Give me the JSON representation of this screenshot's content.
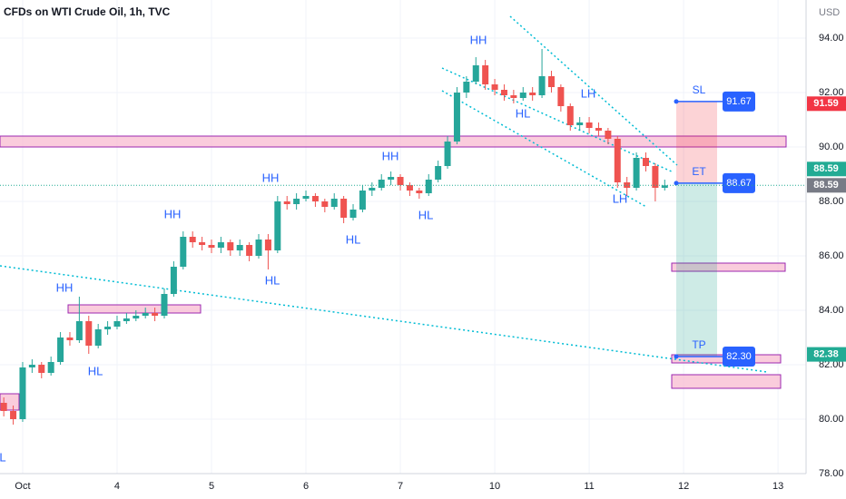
{
  "header": {
    "title": "CFDs on WTI Crude Oil, 1h, TVC"
  },
  "chart_data": {
    "type": "candlestick",
    "y_unit": "USD",
    "x": [
      -0.2,
      -0.1,
      0,
      0.1,
      0.2,
      0.3,
      0.4,
      0.5,
      0.6,
      0.7,
      0.8,
      0.9,
      1,
      1.1,
      1.2,
      1.3,
      1.4,
      1.5,
      1.6,
      1.7,
      1.8,
      1.9,
      2,
      2.1,
      2.2,
      2.3,
      2.4,
      2.5,
      2.6,
      2.7,
      2.8,
      2.9,
      3,
      3.1,
      3.2,
      3.3,
      3.4,
      3.5,
      3.6,
      3.7,
      3.8,
      3.9,
      4,
      4.1,
      4.2,
      4.3,
      4.4,
      4.5,
      4.6,
      4.7,
      4.8,
      4.9,
      5,
      5.1,
      5.2,
      5.3,
      5.4,
      5.5,
      5.6,
      5.7,
      5.8,
      5.9,
      6,
      6.1,
      6.2,
      6.3,
      6.4,
      6.5,
      6.6,
      6.7,
      6.8
    ],
    "open": [
      80.6,
      80.3,
      80.0,
      81.9,
      82.0,
      81.7,
      82.1,
      83.0,
      82.9,
      83.6,
      82.7,
      83.3,
      83.4,
      83.6,
      83.7,
      83.8,
      83.9,
      83.8,
      84.6,
      85.6,
      86.7,
      86.5,
      86.4,
      86.3,
      86.5,
      86.2,
      86.4,
      86.0,
      86.6,
      86.2,
      88.0,
      87.9,
      88.1,
      88.2,
      88.0,
      87.8,
      88.1,
      87.4,
      87.7,
      88.4,
      88.5,
      88.8,
      88.9,
      88.6,
      88.4,
      88.3,
      88.8,
      89.3,
      90.2,
      92.0,
      92.4,
      93.0,
      92.3,
      92.1,
      91.9,
      91.8,
      92.0,
      91.9,
      92.6,
      92.2,
      91.5,
      90.8,
      90.9,
      90.7,
      90.6,
      90.3,
      88.7,
      88.5,
      89.6,
      89.3,
      88.5
    ],
    "high": [
      80.8,
      80.5,
      82.1,
      82.2,
      82.1,
      82.3,
      83.2,
      83.2,
      84.5,
      83.8,
      83.5,
      83.6,
      83.8,
      83.9,
      84.0,
      84.1,
      84.1,
      84.8,
      85.8,
      86.9,
      86.9,
      86.7,
      86.6,
      86.7,
      86.6,
      86.6,
      86.5,
      86.8,
      86.8,
      88.2,
      88.2,
      88.3,
      88.4,
      88.3,
      88.1,
      88.3,
      88.2,
      87.9,
      88.6,
      88.7,
      89.0,
      89.1,
      89.0,
      88.7,
      88.5,
      89.0,
      89.5,
      90.4,
      92.2,
      92.6,
      93.3,
      93.2,
      92.5,
      92.3,
      92.1,
      92.2,
      92.2,
      93.6,
      92.8,
      92.3,
      91.6,
      91.1,
      91.1,
      90.9,
      90.7,
      90.4,
      88.9,
      89.8,
      89.8,
      89.4,
      88.8
    ],
    "low": [
      80.1,
      79.8,
      79.9,
      81.7,
      81.5,
      81.6,
      82.0,
      82.7,
      82.8,
      82.4,
      82.6,
      83.1,
      83.3,
      83.5,
      83.6,
      83.7,
      83.6,
      83.7,
      84.5,
      85.5,
      86.3,
      86.2,
      86.1,
      86.1,
      86.0,
      86.0,
      85.8,
      85.9,
      85.5,
      86.1,
      87.7,
      87.7,
      88.0,
      87.8,
      87.6,
      87.7,
      87.2,
      87.3,
      87.6,
      88.2,
      88.4,
      88.6,
      88.4,
      88.2,
      88.1,
      88.2,
      88.7,
      89.2,
      90.1,
      91.8,
      92.3,
      92.1,
      91.9,
      91.7,
      91.6,
      91.7,
      91.7,
      91.8,
      92.0,
      91.3,
      90.6,
      90.6,
      90.5,
      90.4,
      90.1,
      88.5,
      88.2,
      88.4,
      89.1,
      88.0,
      88.4
    ],
    "close": [
      80.3,
      80.0,
      81.9,
      82.0,
      81.7,
      82.1,
      83.0,
      82.9,
      83.6,
      82.7,
      83.3,
      83.4,
      83.6,
      83.7,
      83.8,
      83.9,
      83.8,
      84.6,
      85.6,
      86.7,
      86.5,
      86.4,
      86.3,
      86.5,
      86.2,
      86.4,
      86.0,
      86.6,
      86.2,
      88.0,
      87.9,
      88.1,
      88.2,
      88.0,
      87.8,
      88.1,
      87.4,
      87.7,
      88.4,
      88.5,
      88.8,
      88.9,
      88.6,
      88.4,
      88.3,
      88.8,
      89.3,
      90.2,
      92.0,
      92.4,
      93.0,
      92.3,
      92.1,
      91.9,
      91.8,
      92.0,
      91.9,
      92.6,
      92.2,
      91.5,
      90.8,
      90.9,
      90.7,
      90.6,
      90.3,
      88.7,
      88.5,
      89.6,
      89.3,
      88.5,
      88.59
    ],
    "up_color": "#26a69a",
    "down_color": "#ef5350",
    "ylim": [
      78,
      95.4
    ],
    "yticks": [
      {
        "value": 78,
        "label": "78.00"
      },
      {
        "value": 80,
        "label": "80.00"
      },
      {
        "value": 82,
        "label": "82.00"
      },
      {
        "value": 84,
        "label": "84.00"
      },
      {
        "value": 86,
        "label": "86.00"
      },
      {
        "value": 88,
        "label": "88.00"
      },
      {
        "value": 90,
        "label": "90.00"
      },
      {
        "value": 92,
        "label": "92.00"
      },
      {
        "value": 94,
        "label": "94.00"
      }
    ],
    "xlim": [
      -0.24,
      8.22
    ],
    "xticks": [
      {
        "value": 0,
        "label": "Oct"
      },
      {
        "value": 1,
        "label": "4"
      },
      {
        "value": 2,
        "label": "5"
      },
      {
        "value": 3,
        "label": "6"
      },
      {
        "value": 4,
        "label": "7"
      },
      {
        "value": 5,
        "label": "10"
      },
      {
        "value": 6,
        "label": "11"
      },
      {
        "value": 7,
        "label": "12"
      },
      {
        "value": 8,
        "label": "13"
      }
    ],
    "grid": true,
    "annotations": [
      "L",
      "HH",
      "HL",
      "HH",
      "HH",
      "HL",
      "HL",
      "HH",
      "HL",
      "HH",
      "HL",
      "LH",
      "LH"
    ],
    "position": [
      {
        "name": "SL",
        "value": 91.67
      },
      {
        "name": "ET",
        "value": 88.67
      },
      {
        "name": "TP",
        "value": 82.3,
        "label": "82.30"
      }
    ],
    "price_tags": [
      {
        "value": 91.59,
        "color": "#f23645"
      },
      {
        "value": 88.59,
        "color": "#787b86"
      },
      {
        "value": 88.59,
        "color": "#22ab94"
      },
      {
        "value": 82.38,
        "color": "#22ab94"
      }
    ]
  }
}
